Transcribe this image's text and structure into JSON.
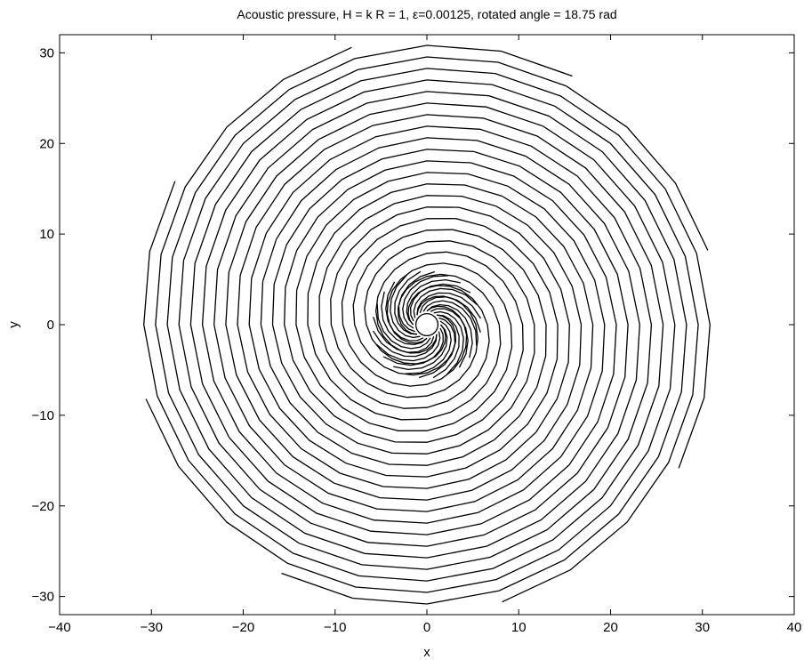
{
  "chart_data": {
    "type": "contour",
    "title": "Acoustic pressure, H = k R = 1, ε=0.00125, rotated angle = 18.75 rad",
    "xlabel": "x",
    "ylabel": "y",
    "xlim": [
      -40,
      40
    ],
    "ylim": [
      -32,
      32
    ],
    "xticks": [
      -40,
      -30,
      -20,
      -10,
      0,
      10,
      20,
      30,
      40
    ],
    "yticks": [
      -30,
      -20,
      -10,
      0,
      10,
      20,
      30
    ],
    "xtick_labels": [
      "−40",
      "−30",
      "−20",
      "−10",
      "0",
      "10",
      "20",
      "30",
      "40"
    ],
    "ytick_labels": [
      "−30",
      "−20",
      "−10",
      "0",
      "10",
      "20",
      "30"
    ],
    "grid": false,
    "box": true,
    "pattern": "spiral",
    "spiral_arms": 4,
    "spiral_pitch_radius_per_turn": 10.2,
    "outer_radius": 32,
    "cylinder_radius": 1.2,
    "cylinder_center": [
      0,
      0
    ],
    "line_color": "#000000"
  }
}
